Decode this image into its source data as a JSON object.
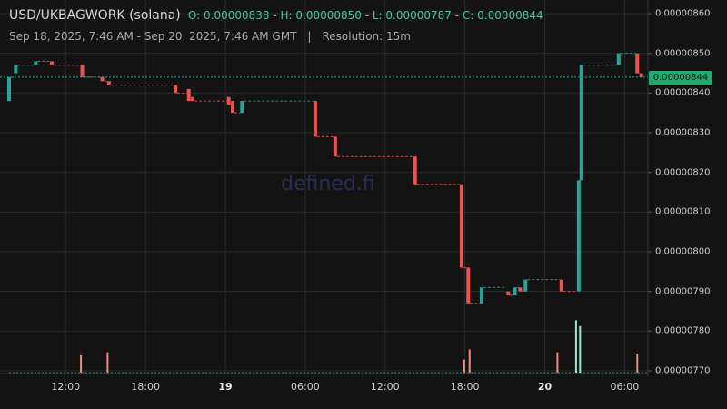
{
  "header": {
    "pair": "USD/UKBAGWORK (solana)",
    "ohlc": "O: 0.00000838 - H: 0.00000850 - L: 0.00000787 - C: 0.00000844"
  },
  "subheader": {
    "range": "Sep 18, 2025, 7:46 AM - Sep 20, 2025, 7:46 AM GMT",
    "separator": "|",
    "resolution": "Resolution: 15m"
  },
  "watermark": "defined.fi",
  "last_price_label": "0.00000844",
  "colors": {
    "up": "#26a69a",
    "down": "#ef5350",
    "background": "#131313",
    "grid": "#2a2a2a",
    "badge": "#26a86f"
  },
  "chart_data": {
    "type": "candlestick",
    "ylim": [
      7.7e-06,
      8.6e-06
    ],
    "yticks": [
      "0.00000860",
      "0.00000850",
      "0.00000840",
      "0.00000830",
      "0.00000820",
      "0.00000810",
      "0.00000800",
      "0.00000790",
      "0.00000780",
      "0.00000770"
    ],
    "xticks": [
      {
        "label": "12:00",
        "bold": false
      },
      {
        "label": "18:00",
        "bold": false
      },
      {
        "label": "19",
        "bold": true
      },
      {
        "label": "06:00",
        "bold": false
      },
      {
        "label": "12:00",
        "bold": false
      },
      {
        "label": "18:00",
        "bold": false
      },
      {
        "label": "20",
        "bold": true
      },
      {
        "label": "06:00",
        "bold": false
      }
    ],
    "last_price": 8.44e-06,
    "candles": [
      {
        "t": 0,
        "o": 8.38e-06,
        "c": 8.44e-06
      },
      {
        "t": 0.5,
        "o": 8.45e-06,
        "c": 8.47e-06
      },
      {
        "t": 2,
        "o": 8.47e-06,
        "c": 8.48e-06
      },
      {
        "t": 3.2,
        "o": 8.48e-06,
        "c": 8.47e-06
      },
      {
        "t": 5.5,
        "o": 8.47e-06,
        "c": 8.44e-06
      },
      {
        "t": 7,
        "o": 8.44e-06,
        "c": 8.43e-06
      },
      {
        "t": 7.5,
        "o": 8.43e-06,
        "c": 8.42e-06
      },
      {
        "t": 12.5,
        "o": 8.42e-06,
        "c": 8.4e-06
      },
      {
        "t": 13.5,
        "o": 8.41e-06,
        "c": 8.38e-06
      },
      {
        "t": 13.8,
        "o": 8.39e-06,
        "c": 8.38e-06
      },
      {
        "t": 16.5,
        "o": 8.39e-06,
        "c": 8.37e-06
      },
      {
        "t": 16.8,
        "o": 8.38e-06,
        "c": 8.35e-06
      },
      {
        "t": 17.5,
        "o": 8.35e-06,
        "c": 8.38e-06
      },
      {
        "t": 23,
        "o": 8.38e-06,
        "c": 8.29e-06
      },
      {
        "t": 24.5,
        "o": 8.29e-06,
        "c": 8.24e-06
      },
      {
        "t": 30.5,
        "o": 8.24e-06,
        "c": 8.17e-06
      },
      {
        "t": 34,
        "o": 8.17e-06,
        "c": 7.96e-06
      },
      {
        "t": 34.5,
        "o": 7.96e-06,
        "c": 7.87e-06
      },
      {
        "t": 35.5,
        "o": 7.87e-06,
        "c": 7.91e-06
      },
      {
        "t": 37.5,
        "o": 7.9e-06,
        "c": 7.89e-06
      },
      {
        "t": 38,
        "o": 7.89e-06,
        "c": 7.91e-06
      },
      {
        "t": 38.4,
        "o": 7.91e-06,
        "c": 7.9e-06
      },
      {
        "t": 38.8,
        "o": 7.9e-06,
        "c": 7.93e-06
      },
      {
        "t": 41.5,
        "o": 7.93e-06,
        "c": 7.9e-06
      },
      {
        "t": 42.8,
        "o": 7.9e-06,
        "c": 8.18e-06
      },
      {
        "t": 43,
        "o": 8.18e-06,
        "c": 8.47e-06
      },
      {
        "t": 45.8,
        "o": 8.47e-06,
        "c": 8.5e-06
      },
      {
        "t": 47.2,
        "o": 8.5e-06,
        "c": 8.45e-06
      },
      {
        "t": 47.5,
        "o": 8.45e-06,
        "c": 8.44e-06
      }
    ],
    "volumes": [
      {
        "t": 5.4,
        "v": 0.12,
        "up": false
      },
      {
        "t": 7.4,
        "v": 0.14,
        "up": false
      },
      {
        "t": 34.2,
        "v": 0.09,
        "up": false
      },
      {
        "t": 34.6,
        "v": 0.16,
        "up": false
      },
      {
        "t": 41.2,
        "v": 0.14,
        "up": false
      },
      {
        "t": 42.6,
        "v": 0.36,
        "up": true
      },
      {
        "t": 42.9,
        "v": 0.32,
        "up": true
      },
      {
        "t": 47.2,
        "v": 0.13,
        "up": false
      }
    ]
  }
}
